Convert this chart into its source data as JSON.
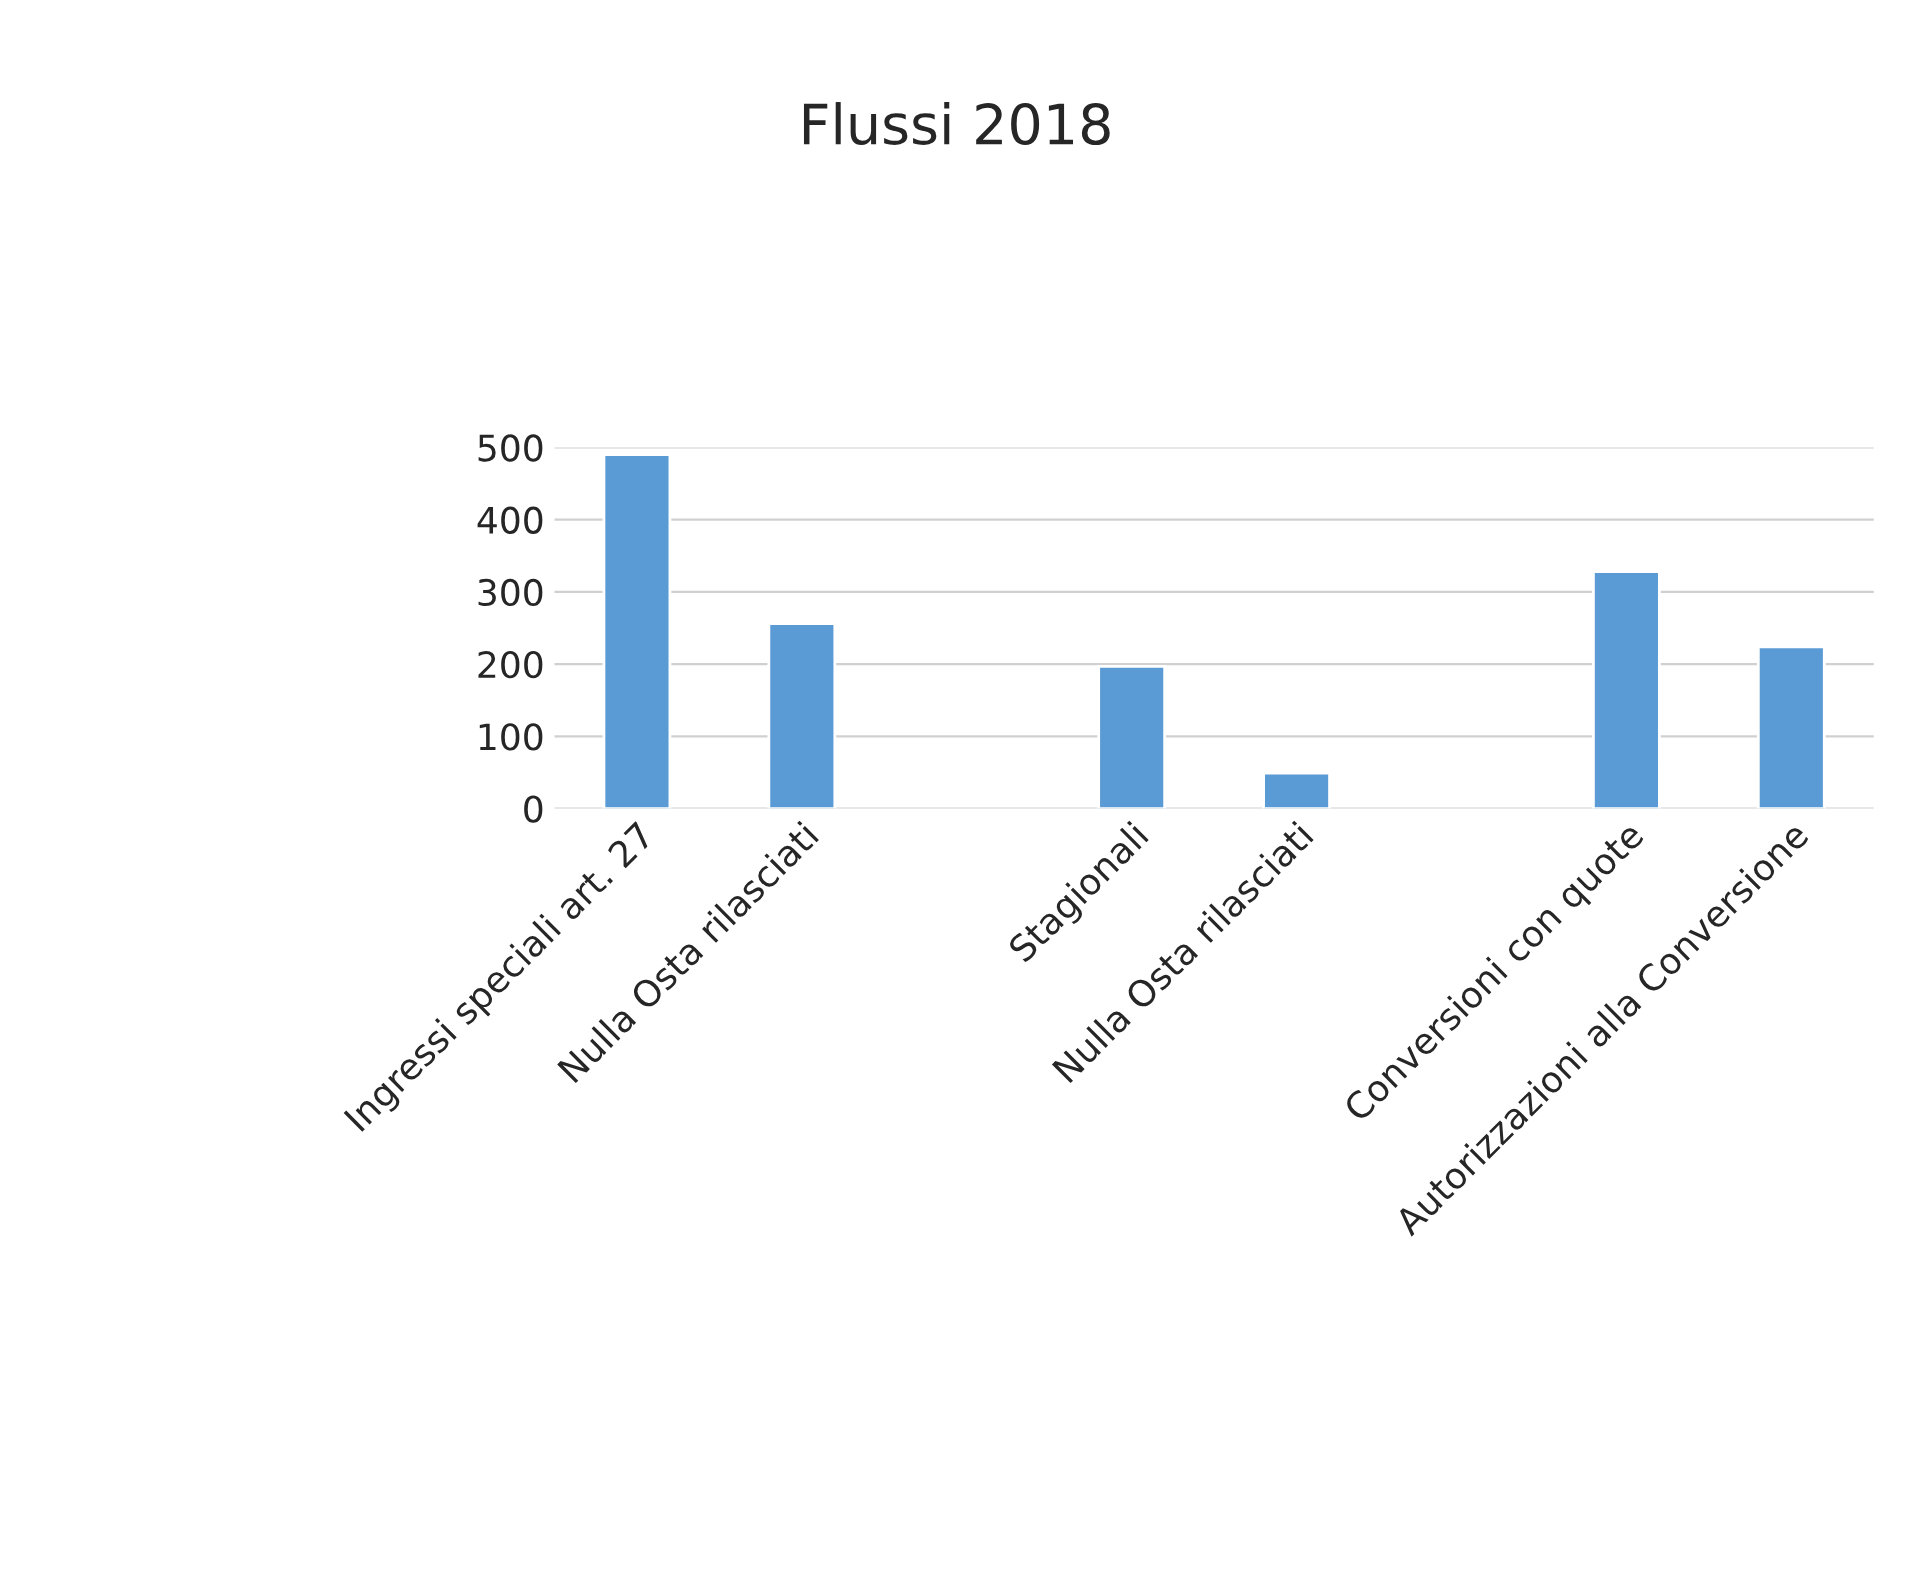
{
  "chart_data": {
    "type": "bar",
    "title": "Flussi 2018",
    "categories": [
      "Ingressi speciali art. 27",
      "Nulla Osta rilasciati",
      null,
      "Stagionali",
      "Nulla Osta rilasciati",
      null,
      "Conversioni con quote",
      "Autorizzazioni alla Conversione"
    ],
    "values": [
      490,
      256,
      null,
      197,
      49,
      null,
      328,
      224
    ],
    "color": "#5b9bd5",
    "ylim": [
      0,
      500
    ],
    "yticks": [
      0,
      100,
      200,
      300,
      400,
      500
    ],
    "grid": "y"
  }
}
